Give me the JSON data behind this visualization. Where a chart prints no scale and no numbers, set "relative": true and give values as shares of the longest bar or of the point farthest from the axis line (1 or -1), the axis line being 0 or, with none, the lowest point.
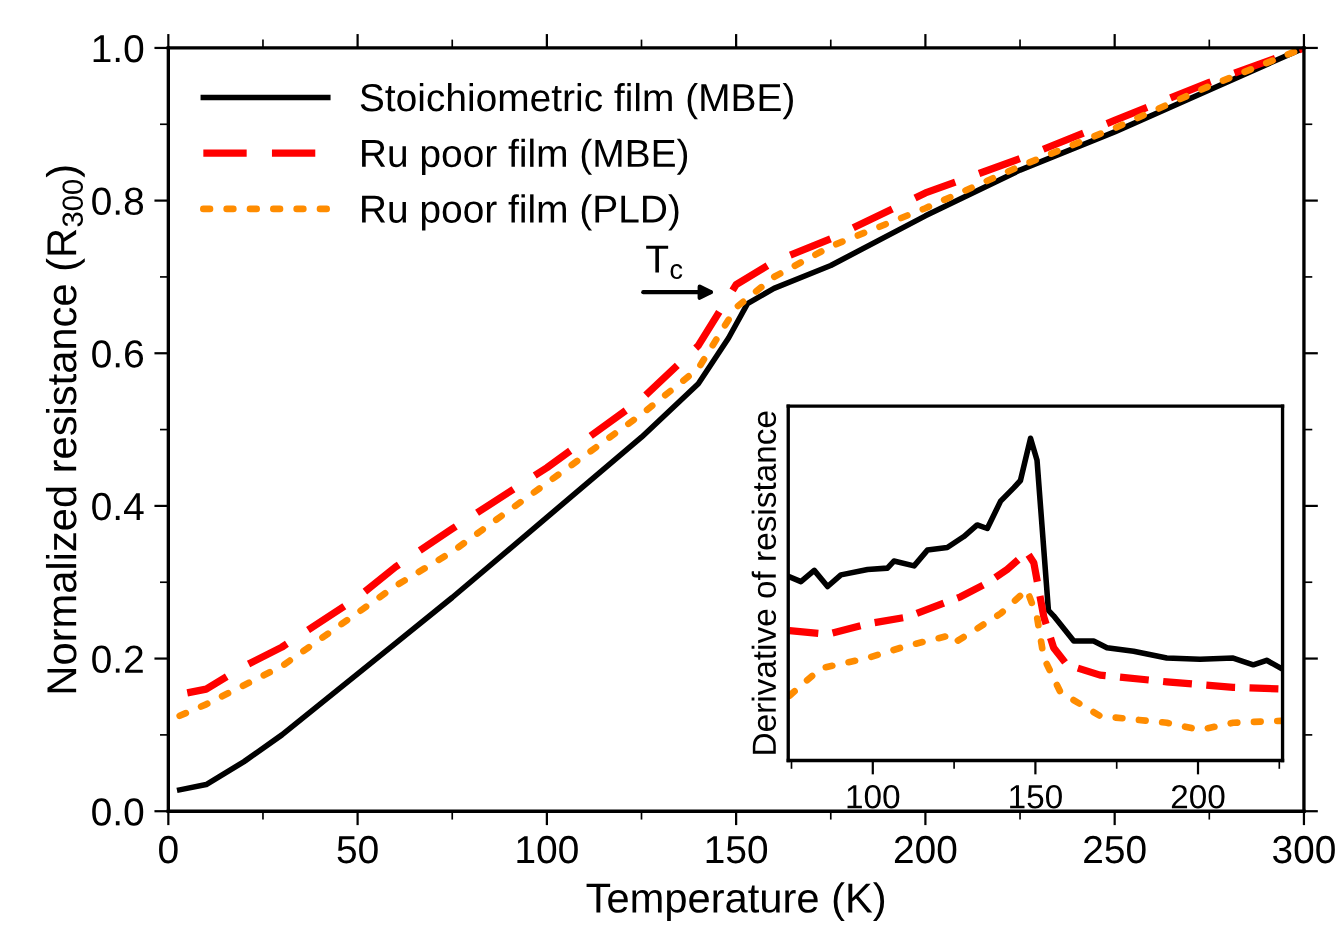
{
  "chart_data": [
    {
      "type": "line",
      "xlabel": "Temperature (K)",
      "ylabel": "Normalized resistance (R$_{300}$)",
      "xlim": [
        0,
        300
      ],
      "ylim": [
        0,
        1.0
      ],
      "xticks": [
        0,
        50,
        100,
        150,
        200,
        250,
        300
      ],
      "yticks": [
        {
          "value": 0,
          "label": "0.0"
        },
        0.2,
        0.4,
        0.6,
        0.8,
        {
          "value": 1.0,
          "label": "1.0"
        }
      ],
      "legend": "top left",
      "grid": false,
      "annotations": [
        {
          "text": "T$_{c}$",
          "x": 146,
          "y": 0.68
        }
      ],
      "series": [
        {
          "name": "Stoichiometric film (MBE)",
          "color": "#000000",
          "line_style": "solid",
          "x": [
            3,
            10,
            20,
            30,
            40,
            50,
            60,
            75,
            100,
            125,
            140,
            148,
            153,
            160,
            175,
            200,
            225,
            250,
            275,
            300
          ],
          "values": [
            0.028,
            0.035,
            0.065,
            0.1,
            0.14,
            0.18,
            0.22,
            0.28,
            0.385,
            0.49,
            0.56,
            0.62,
            0.665,
            0.685,
            0.715,
            0.78,
            0.84,
            0.89,
            0.945,
            1.0
          ]
        },
        {
          "name": "Ru poor film (MBE)",
          "color": "#ff0000",
          "line_style": "dashed",
          "x": [
            5,
            10,
            20,
            30,
            50,
            60,
            75,
            100,
            125,
            140,
            150,
            160,
            175,
            200,
            225,
            250,
            275,
            300
          ],
          "values": [
            0.155,
            0.16,
            0.19,
            0.215,
            0.28,
            0.32,
            0.37,
            0.45,
            0.54,
            0.61,
            0.69,
            0.72,
            0.75,
            0.81,
            0.855,
            0.905,
            0.955,
            1.0
          ]
        },
        {
          "name": "Ru poor film (PLD)",
          "color": "#ff8c00",
          "line_style": "dotted",
          "x": [
            3,
            10,
            20,
            30,
            50,
            60,
            75,
            100,
            125,
            140,
            150,
            160,
            175,
            200,
            225,
            250,
            275,
            300
          ],
          "values": [
            0.125,
            0.14,
            0.165,
            0.19,
            0.26,
            0.295,
            0.34,
            0.43,
            0.52,
            0.58,
            0.66,
            0.7,
            0.74,
            0.79,
            0.845,
            0.895,
            0.95,
            1.0
          ]
        }
      ]
    },
    {
      "type": "line",
      "ylabel": "Derivative of resistance",
      "relative": true,
      "xlim": [
        74,
        226
      ],
      "xticks": [
        100,
        150,
        200
      ],
      "tick_labels": "x",
      "legend": false,
      "grid": false,
      "series": [
        {
          "color": "#000000",
          "line_style": "solid",
          "x": [
            74.4,
            77.9,
            82.0,
            86.1,
            90.2,
            98.4,
            104.5,
            106.5,
            112.7,
            116.8,
            122.9,
            128.0,
            132.1,
            135.2,
            139.3,
            143.4,
            145.4,
            148.5,
            150.5,
            154.0,
            155.6,
            161.8,
            167.9,
            172.0,
            180.2,
            190.4,
            200.6,
            210.8,
            217.0,
            221.1,
            225.5
          ],
          "values": [
            0.57,
            0.555,
            0.59,
            0.54,
            0.576,
            0.593,
            0.597,
            0.619,
            0.604,
            0.653,
            0.661,
            0.695,
            0.731,
            0.72,
            0.805,
            0.847,
            0.869,
            1.0,
            0.932,
            0.466,
            0.449,
            0.371,
            0.371,
            0.35,
            0.339,
            0.318,
            0.314,
            0.318,
            0.297,
            0.311,
            0.286
          ]
        },
        {
          "color": "#ff0000",
          "line_style": "dashed",
          "x": [
            74.4,
            86.1,
            98.4,
            110.6,
            118.8,
            127.0,
            135.2,
            141.3,
            147.4,
            149.5,
            152.6,
            155.6,
            159.7,
            169.9,
            190.4,
            210.8,
            225.5
          ],
          "values": [
            0.403,
            0.392,
            0.424,
            0.445,
            0.477,
            0.508,
            0.551,
            0.593,
            0.646,
            0.614,
            0.445,
            0.35,
            0.297,
            0.265,
            0.244,
            0.227,
            0.222
          ]
        },
        {
          "color": "#ff8c00",
          "line_style": "dotted",
          "x": [
            74.4,
            84.0,
            98.4,
            110.6,
            122.9,
            124.9,
            131.1,
            139.3,
            147.4,
            150.5,
            152.6,
            157.7,
            169.9,
            190.4,
            200.6,
            210.8,
            225.5
          ],
          "values": [
            0.201,
            0.286,
            0.318,
            0.356,
            0.386,
            0.364,
            0.403,
            0.456,
            0.53,
            0.445,
            0.318,
            0.212,
            0.138,
            0.117,
            0.095,
            0.117,
            0.123
          ]
        }
      ]
    }
  ]
}
